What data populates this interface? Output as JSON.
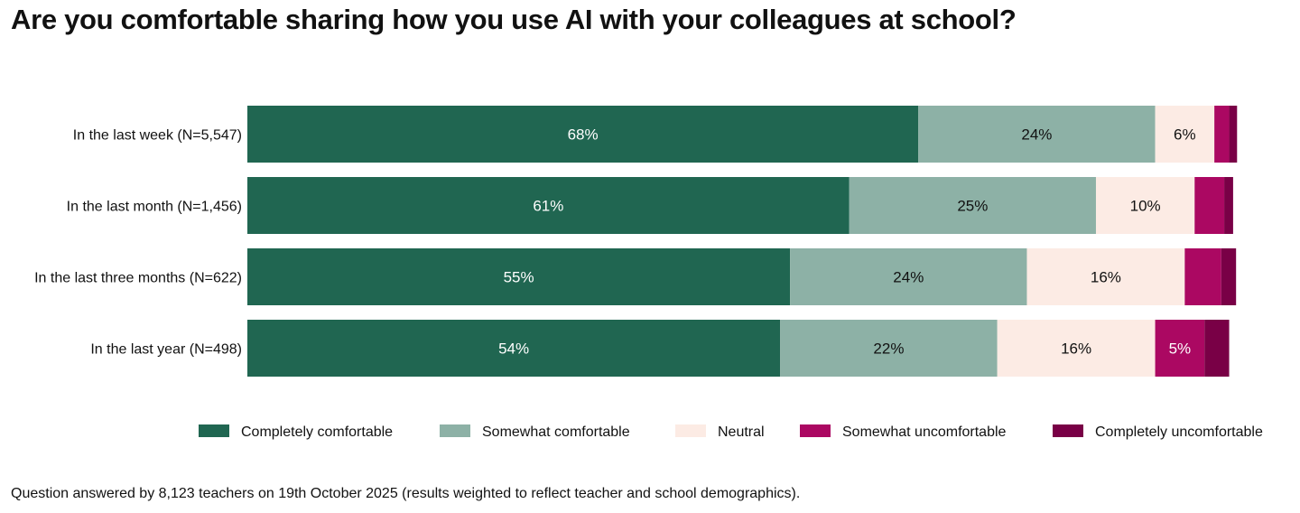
{
  "chart_data": {
    "type": "bar",
    "orientation": "horizontal",
    "stacked": true,
    "title": "Are you comfortable sharing how you use AI with your colleagues at school?",
    "categories": [
      "In the last week (N=5,547)",
      "In the last month (N=1,456)",
      "In the last three months (N=622)",
      "In the last year (N=498)"
    ],
    "series": [
      {
        "name": "Completely comfortable",
        "color": "#206651",
        "label_color": "#ffffff",
        "values": [
          68,
          61,
          55,
          54
        ]
      },
      {
        "name": "Somewhat comfortable",
        "color": "#8db1a6",
        "label_color": "#111111",
        "values": [
          24,
          25,
          24,
          22
        ]
      },
      {
        "name": "Neutral",
        "color": "#fcebe4",
        "label_color": "#111111",
        "values": [
          6,
          10,
          16,
          16
        ]
      },
      {
        "name": "Somewhat uncomfortable",
        "color": "#ab0862",
        "label_color": "#ffffff",
        "values": [
          1.5,
          3,
          3.7,
          5
        ]
      },
      {
        "name": "Completely uncomfortable",
        "color": "#790046",
        "label_color": "#ffffff",
        "values": [
          0.8,
          0.9,
          1.5,
          2.5
        ]
      }
    ],
    "data_labels": [
      [
        "68%",
        "24%",
        "6%",
        "",
        ""
      ],
      [
        "61%",
        "25%",
        "10%",
        "",
        ""
      ],
      [
        "55%",
        "24%",
        "16%",
        "",
        ""
      ],
      [
        "54%",
        "22%",
        "16%",
        "5%",
        ""
      ]
    ],
    "xlim": [
      0,
      100
    ],
    "grid": false,
    "legend_position": "bottom"
  },
  "footnote": "Question answered by 8,123 teachers on 19th October 2025 (results weighted to reflect teacher and school demographics)."
}
